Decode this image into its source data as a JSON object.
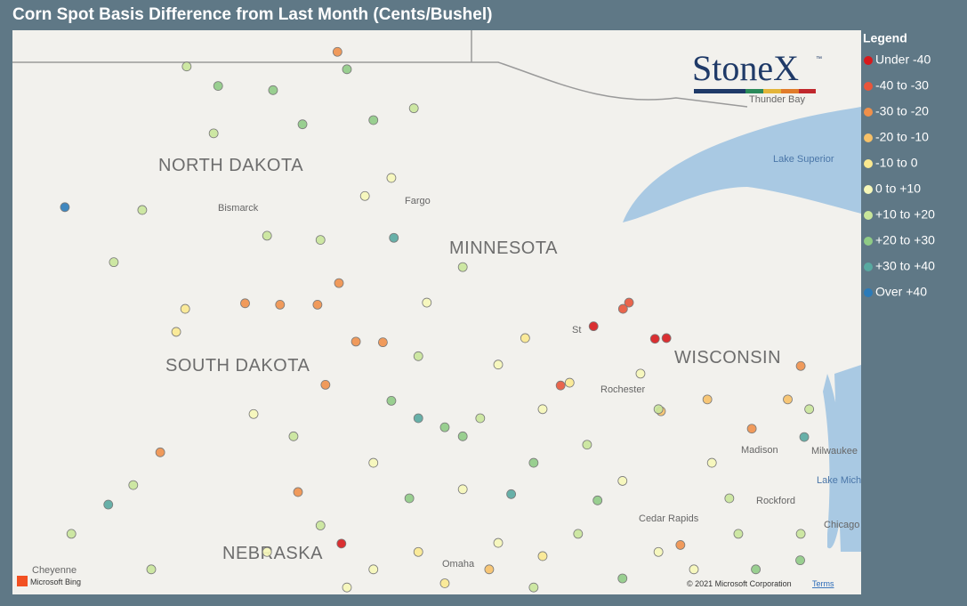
{
  "header": {
    "title": "Corn Spot Basis Difference from Last Month (Cents/Bushel)"
  },
  "logo": {
    "text": "StoneX",
    "mark": "™"
  },
  "legend": {
    "title": "Legend",
    "items": [
      {
        "label": "Under -40",
        "color": "#d7191c"
      },
      {
        "label": "-40 to -30",
        "color": "#e8553a"
      },
      {
        "label": "-30 to -20",
        "color": "#f0904a"
      },
      {
        "label": "-20 to -10",
        "color": "#f7c168"
      },
      {
        "label": "-10 to 0",
        "color": "#fbe98f"
      },
      {
        "label": "0 to +10",
        "color": "#f6f7b8"
      },
      {
        "label": "+10 to +20",
        "color": "#c9e69a"
      },
      {
        "label": "+20 to +30",
        "color": "#8fcb85"
      },
      {
        "label": "+30 to +40",
        "color": "#58a9a0"
      },
      {
        "label": "Over +40",
        "color": "#2b7bb9"
      }
    ]
  },
  "map": {
    "states": [
      "NORTH DAKOTA",
      "MINNESOTA",
      "SOUTH DAKOTA",
      "WISCONSIN",
      "NEBRASKA"
    ],
    "cities": [
      "Bismarck",
      "Fargo",
      "Thunder Bay",
      "Lake Superior",
      "Rochester",
      "Madison",
      "Milwaukee",
      "Lake Mich",
      "Rockford",
      "Cedar Rapids",
      "Chicago",
      "Cheyenne",
      "Omaha",
      "St"
    ],
    "attribution": "© 2021 Microsoft Corporation",
    "terms": "Terms",
    "provider": "Microsoft Bing",
    "points": [
      {
        "lon": -97.99,
        "lat": 48.99,
        "class": 2
      },
      {
        "lon": -103.45,
        "lat": 46.76,
        "class": 9
      },
      {
        "lon": -96.86,
        "lat": 46.32,
        "class": 8
      },
      {
        "lon": -102.58,
        "lat": 42.49,
        "class": 8
      },
      {
        "lon": -97.91,
        "lat": 41.93,
        "class": 0
      },
      {
        "lon": -92.86,
        "lat": 45.05,
        "class": 0
      },
      {
        "lon": -91.63,
        "lat": 44.87,
        "class": 0
      },
      {
        "lon": -91.4,
        "lat": 44.88,
        "class": 0
      },
      {
        "lon": -92.15,
        "lat": 45.39,
        "class": 1
      },
      {
        "lon": -92.27,
        "lat": 45.3,
        "class": 1
      },
      {
        "lon": -93.52,
        "lat": 44.2,
        "class": 1
      },
      {
        "lon": -101.54,
        "lat": 43.24,
        "class": 2
      },
      {
        "lon": -98.78,
        "lat": 42.67,
        "class": 2
      },
      {
        "lon": -98.23,
        "lat": 44.21,
        "class": 2
      },
      {
        "lon": -98.39,
        "lat": 45.36,
        "class": 2
      },
      {
        "lon": -99.14,
        "lat": 45.36,
        "class": 2
      },
      {
        "lon": -99.84,
        "lat": 45.38,
        "class": 2
      },
      {
        "lon": -97.62,
        "lat": 44.83,
        "class": 2
      },
      {
        "lon": -97.08,
        "lat": 44.82,
        "class": 2
      },
      {
        "lon": -97.96,
        "lat": 45.67,
        "class": 2
      },
      {
        "lon": -88.71,
        "lat": 44.48,
        "class": 2
      },
      {
        "lon": -89.69,
        "lat": 43.58,
        "class": 2
      },
      {
        "lon": -91.12,
        "lat": 41.91,
        "class": 2
      },
      {
        "lon": -88.97,
        "lat": 44.0,
        "class": 3
      },
      {
        "lon": -90.58,
        "lat": 44.0,
        "class": 3
      },
      {
        "lon": -91.51,
        "lat": 43.83,
        "class": 3
      },
      {
        "lon": -101.04,
        "lat": 45.3,
        "class": 4
      },
      {
        "lon": -101.22,
        "lat": 44.97,
        "class": 4
      },
      {
        "lon": -102.47,
        "lat": 45.97,
        "class": 6
      },
      {
        "lon": -101.9,
        "lat": 46.72,
        "class": 6
      },
      {
        "lon": -101.01,
        "lat": 48.78,
        "class": 6
      },
      {
        "lon": -100.38,
        "lat": 48.5,
        "class": 7
      },
      {
        "lon": -99.28,
        "lat": 48.44,
        "class": 7
      },
      {
        "lon": -97.8,
        "lat": 48.74,
        "class": 7
      },
      {
        "lon": -96.46,
        "lat": 48.18,
        "class": 6
      },
      {
        "lon": -97.27,
        "lat": 48.01,
        "class": 7
      },
      {
        "lon": -95.48,
        "lat": 45.9,
        "class": 6
      },
      {
        "lon": -96.2,
        "lat": 45.39,
        "class": 5
      },
      {
        "lon": -96.37,
        "lat": 44.62,
        "class": 6
      },
      {
        "lon": -95.84,
        "lat": 43.6,
        "class": 7
      },
      {
        "lon": -95.48,
        "lat": 43.47,
        "class": 7
      },
      {
        "lon": -96.37,
        "lat": 43.73,
        "class": 8
      },
      {
        "lon": -95.13,
        "lat": 43.73,
        "class": 6
      },
      {
        "lon": -94.51,
        "lat": 42.64,
        "class": 8
      },
      {
        "lon": -94.06,
        "lat": 43.09,
        "class": 7
      },
      {
        "lon": -92.78,
        "lat": 42.55,
        "class": 7
      },
      {
        "lon": -94.77,
        "lat": 41.94,
        "class": 5
      },
      {
        "lon": -93.17,
        "lat": 42.07,
        "class": 6
      },
      {
        "lon": -92.28,
        "lat": 42.83,
        "class": 5
      },
      {
        "lon": -93.34,
        "lat": 44.24,
        "class": 4
      },
      {
        "lon": -91.92,
        "lat": 44.37,
        "class": 5
      },
      {
        "lon": -91.56,
        "lat": 43.86,
        "class": 6
      },
      {
        "lon": -90.14,
        "lat": 42.58,
        "class": 6
      },
      {
        "lon": -88.64,
        "lat": 43.46,
        "class": 8
      },
      {
        "lon": -88.72,
        "lat": 41.69,
        "class": 7
      },
      {
        "lon": -89.96,
        "lat": 42.07,
        "class": 6
      },
      {
        "lon": -98.87,
        "lat": 43.47,
        "class": 6
      },
      {
        "lon": -99.67,
        "lat": 43.79,
        "class": 5
      },
      {
        "lon": -102.08,
        "lat": 42.77,
        "class": 6
      },
      {
        "lon": -103.32,
        "lat": 42.07,
        "class": 6
      },
      {
        "lon": -101.72,
        "lat": 41.56,
        "class": 6
      },
      {
        "lon": -99.4,
        "lat": 41.81,
        "class": 5
      },
      {
        "lon": -97.27,
        "lat": 41.56,
        "class": 5
      },
      {
        "lon": -96.37,
        "lat": 41.81,
        "class": 4
      },
      {
        "lon": -94.95,
        "lat": 41.56,
        "class": 3
      },
      {
        "lon": -93.88,
        "lat": 41.75,
        "class": 4
      },
      {
        "lon": -92.28,
        "lat": 41.43,
        "class": 7
      },
      {
        "lon": -90.85,
        "lat": 41.56,
        "class": 5
      },
      {
        "lon": -89.61,
        "lat": 41.56,
        "class": 7
      },
      {
        "lon": -88.54,
        "lat": 43.86,
        "class": 6
      },
      {
        "lon": -96.91,
        "lat": 47.18,
        "class": 5
      },
      {
        "lon": -97.44,
        "lat": 46.92,
        "class": 5
      },
      {
        "lon": -98.33,
        "lat": 46.29,
        "class": 6
      },
      {
        "lon": -99.4,
        "lat": 46.35,
        "class": 6
      },
      {
        "lon": -100.47,
        "lat": 47.82,
        "class": 6
      },
      {
        "lon": -98.69,
        "lat": 47.95,
        "class": 7
      },
      {
        "lon": -96.91,
        "lat": 43.98,
        "class": 7
      },
      {
        "lon": -94.77,
        "lat": 44.5,
        "class": 5
      },
      {
        "lon": -94.23,
        "lat": 44.88,
        "class": 4
      },
      {
        "lon": -93.88,
        "lat": 43.86,
        "class": 5
      },
      {
        "lon": -92.99,
        "lat": 43.35,
        "class": 6
      },
      {
        "lon": -95.48,
        "lat": 42.71,
        "class": 5
      },
      {
        "lon": -96.55,
        "lat": 42.58,
        "class": 7
      },
      {
        "lon": -97.27,
        "lat": 43.09,
        "class": 5
      },
      {
        "lon": -98.33,
        "lat": 42.19,
        "class": 6
      },
      {
        "lon": -97.8,
        "lat": 41.3,
        "class": 5
      },
      {
        "lon": -95.84,
        "lat": 41.36,
        "class": 4
      },
      {
        "lon": -94.06,
        "lat": 41.3,
        "class": 6
      },
      {
        "lon": -91.56,
        "lat": 41.81,
        "class": 5
      },
      {
        "lon": -88.71,
        "lat": 42.07,
        "class": 6
      },
      {
        "lon": -90.49,
        "lat": 43.09,
        "class": 5
      }
    ]
  }
}
